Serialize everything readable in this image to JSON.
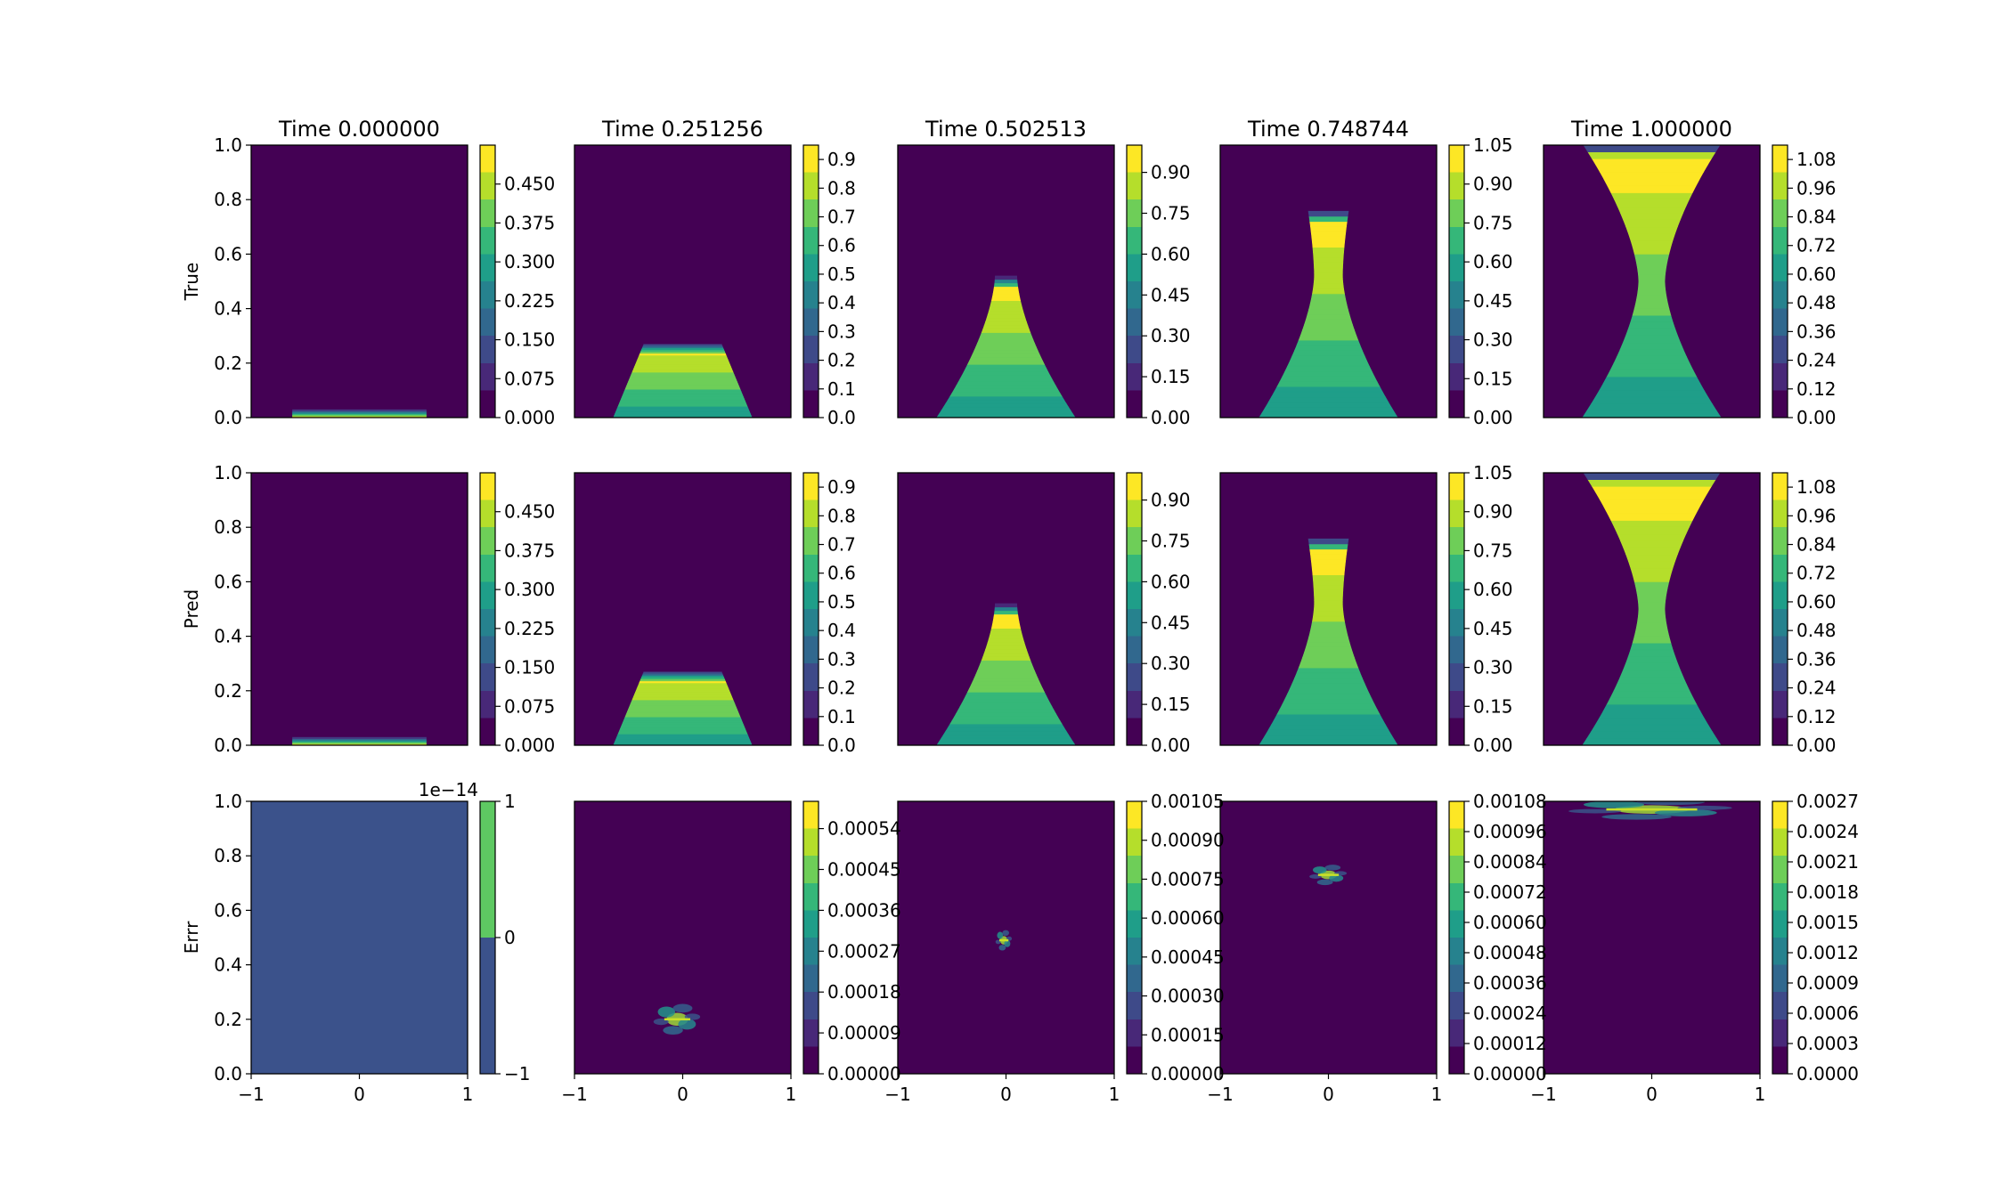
{
  "figure": {
    "row_labels": [
      "True",
      "Pred",
      "Errr"
    ],
    "colors": {
      "cmap": [
        "#440154",
        "#482878",
        "#3e4a89",
        "#31688e",
        "#26828e",
        "#1f9e89",
        "#35b779",
        "#6ece58",
        "#b5de2b",
        "#fde725"
      ],
      "background": "#440154",
      "error_flat": "#3b528b"
    }
  },
  "chart_data": [
    {
      "type": "heatmap",
      "row": "True",
      "title": "Time 0.000000",
      "xlim": [
        -1,
        1
      ],
      "ylim": [
        0,
        1
      ],
      "x_ticks": [
        "−1",
        "0",
        "1"
      ],
      "y_ticks": [
        "0.0",
        "0.2",
        "0.4",
        "0.6",
        "0.8",
        "1.0"
      ],
      "colorbar": {
        "min": 0,
        "max": 0.525,
        "ticks": [
          "0.000",
          "0.075",
          "0.150",
          "0.225",
          "0.300",
          "0.375",
          "0.450"
        ],
        "offset_label": ""
      },
      "field": {
        "shape": "band",
        "time": 0.0,
        "amplitude": 0.5
      }
    },
    {
      "type": "heatmap",
      "row": "True",
      "title": "Time 0.251256",
      "xlim": [
        -1,
        1
      ],
      "ylim": [
        0,
        1
      ],
      "x_ticks": [
        "−1",
        "0",
        "1"
      ],
      "y_ticks": [
        "0.0",
        "0.2",
        "0.4",
        "0.6",
        "0.8",
        "1.0"
      ],
      "colorbar": {
        "min": 0,
        "max": 0.95,
        "ticks": [
          "0.0",
          "0.1",
          "0.2",
          "0.3",
          "0.4",
          "0.5",
          "0.6",
          "0.7",
          "0.8",
          "0.9"
        ],
        "offset_label": ""
      },
      "field": {
        "shape": "rising",
        "time": 0.251256,
        "amplitude": 0.9
      }
    },
    {
      "type": "heatmap",
      "row": "True",
      "title": "Time 0.502513",
      "xlim": [
        -1,
        1
      ],
      "ylim": [
        0,
        1
      ],
      "x_ticks": [
        "−1",
        "0",
        "1"
      ],
      "y_ticks": [
        "0.0",
        "0.2",
        "0.4",
        "0.6",
        "0.8",
        "1.0"
      ],
      "colorbar": {
        "min": 0,
        "max": 1.0,
        "ticks": [
          "0.00",
          "0.15",
          "0.30",
          "0.45",
          "0.60",
          "0.75",
          "0.90"
        ],
        "offset_label": ""
      },
      "field": {
        "shape": "rising",
        "time": 0.502513,
        "amplitude": 0.95
      }
    },
    {
      "type": "heatmap",
      "row": "True",
      "title": "Time 0.748744",
      "xlim": [
        -1,
        1
      ],
      "ylim": [
        0,
        1
      ],
      "x_ticks": [
        "−1",
        "0",
        "1"
      ],
      "y_ticks": [
        "0.0",
        "0.2",
        "0.4",
        "0.6",
        "0.8",
        "1.0"
      ],
      "colorbar": {
        "min": 0,
        "max": 1.05,
        "ticks": [
          "0.00",
          "0.15",
          "0.30",
          "0.45",
          "0.60",
          "0.75",
          "0.90",
          "1.05"
        ],
        "offset_label": ""
      },
      "field": {
        "shape": "rising",
        "time": 0.748744,
        "amplitude": 1.0
      }
    },
    {
      "type": "heatmap",
      "row": "True",
      "title": "Time 1.000000",
      "xlim": [
        -1,
        1
      ],
      "ylim": [
        0,
        1
      ],
      "x_ticks": [
        "−1",
        "0",
        "1"
      ],
      "y_ticks": [
        "0.0",
        "0.2",
        "0.4",
        "0.6",
        "0.8",
        "1.0"
      ],
      "colorbar": {
        "min": 0,
        "max": 1.14,
        "ticks": [
          "0.00",
          "0.12",
          "0.24",
          "0.36",
          "0.48",
          "0.60",
          "0.72",
          "0.84",
          "0.96",
          "1.08"
        ],
        "offset_label": ""
      },
      "field": {
        "shape": "rising",
        "time": 1.0,
        "amplitude": 1.08
      }
    },
    {
      "type": "heatmap",
      "row": "Pred",
      "title": "",
      "xlim": [
        -1,
        1
      ],
      "ylim": [
        0,
        1
      ],
      "x_ticks": [
        "−1",
        "0",
        "1"
      ],
      "y_ticks": [
        "0.0",
        "0.2",
        "0.4",
        "0.6",
        "0.8",
        "1.0"
      ],
      "colorbar": {
        "min": 0,
        "max": 0.525,
        "ticks": [
          "0.000",
          "0.075",
          "0.150",
          "0.225",
          "0.300",
          "0.375",
          "0.450"
        ],
        "offset_label": ""
      },
      "field": {
        "shape": "band",
        "time": 0.0,
        "amplitude": 0.5
      }
    },
    {
      "type": "heatmap",
      "row": "Pred",
      "title": "",
      "xlim": [
        -1,
        1
      ],
      "ylim": [
        0,
        1
      ],
      "x_ticks": [
        "−1",
        "0",
        "1"
      ],
      "y_ticks": [
        "0.0",
        "0.2",
        "0.4",
        "0.6",
        "0.8",
        "1.0"
      ],
      "colorbar": {
        "min": 0,
        "max": 0.95,
        "ticks": [
          "0.0",
          "0.1",
          "0.2",
          "0.3",
          "0.4",
          "0.5",
          "0.6",
          "0.7",
          "0.8",
          "0.9"
        ],
        "offset_label": ""
      },
      "field": {
        "shape": "rising",
        "time": 0.251256,
        "amplitude": 0.9
      }
    },
    {
      "type": "heatmap",
      "row": "Pred",
      "title": "",
      "xlim": [
        -1,
        1
      ],
      "ylim": [
        0,
        1
      ],
      "x_ticks": [
        "−1",
        "0",
        "1"
      ],
      "y_ticks": [
        "0.0",
        "0.2",
        "0.4",
        "0.6",
        "0.8",
        "1.0"
      ],
      "colorbar": {
        "min": 0,
        "max": 1.0,
        "ticks": [
          "0.00",
          "0.15",
          "0.30",
          "0.45",
          "0.60",
          "0.75",
          "0.90"
        ],
        "offset_label": ""
      },
      "field": {
        "shape": "rising",
        "time": 0.502513,
        "amplitude": 0.95
      }
    },
    {
      "type": "heatmap",
      "row": "Pred",
      "title": "",
      "xlim": [
        -1,
        1
      ],
      "ylim": [
        0,
        1
      ],
      "x_ticks": [
        "−1",
        "0",
        "1"
      ],
      "y_ticks": [
        "0.0",
        "0.2",
        "0.4",
        "0.6",
        "0.8",
        "1.0"
      ],
      "colorbar": {
        "min": 0,
        "max": 1.05,
        "ticks": [
          "0.00",
          "0.15",
          "0.30",
          "0.45",
          "0.60",
          "0.75",
          "0.90",
          "1.05"
        ],
        "offset_label": ""
      },
      "field": {
        "shape": "rising",
        "time": 0.748744,
        "amplitude": 1.0
      }
    },
    {
      "type": "heatmap",
      "row": "Pred",
      "title": "",
      "xlim": [
        -1,
        1
      ],
      "ylim": [
        0,
        1
      ],
      "x_ticks": [
        "−1",
        "0",
        "1"
      ],
      "y_ticks": [
        "0.0",
        "0.2",
        "0.4",
        "0.6",
        "0.8",
        "1.0"
      ],
      "colorbar": {
        "min": 0,
        "max": 1.14,
        "ticks": [
          "0.00",
          "0.12",
          "0.24",
          "0.36",
          "0.48",
          "0.60",
          "0.72",
          "0.84",
          "0.96",
          "1.08"
        ],
        "offset_label": ""
      },
      "field": {
        "shape": "rising",
        "time": 1.0,
        "amplitude": 1.08
      }
    },
    {
      "type": "heatmap",
      "row": "Errr",
      "title": "",
      "xlim": [
        -1,
        1
      ],
      "ylim": [
        0,
        1
      ],
      "x_ticks": [
        "−1",
        "0",
        "1"
      ],
      "y_ticks": [
        "0.0",
        "0.2",
        "0.4",
        "0.6",
        "0.8",
        "1.0"
      ],
      "colorbar": {
        "min": -1,
        "max": 1,
        "ticks": [
          "−1",
          "0",
          "1"
        ],
        "offset_label": "1e−14",
        "discrete": [
          "#3b528b",
          "#5ec962"
        ]
      },
      "field": {
        "shape": "flat"
      }
    },
    {
      "type": "heatmap",
      "row": "Errr",
      "title": "",
      "xlim": [
        -1,
        1
      ],
      "ylim": [
        0,
        1
      ],
      "x_ticks": [
        "−1",
        "0",
        "1"
      ],
      "y_ticks": [
        "0.0",
        "0.2",
        "0.4",
        "0.6",
        "0.8",
        "1.0"
      ],
      "colorbar": {
        "min": 0,
        "max": 0.0006,
        "ticks": [
          "0.00000",
          "0.00009",
          "0.00018",
          "0.00027",
          "0.00036",
          "0.00045",
          "0.00054"
        ],
        "offset_label": ""
      },
      "field": {
        "shape": "error",
        "center": [
          -0.05,
          0.2
        ]
      }
    },
    {
      "type": "heatmap",
      "row": "Errr",
      "title": "",
      "xlim": [
        -1,
        1
      ],
      "ylim": [
        0,
        1
      ],
      "x_ticks": [
        "−1",
        "0",
        "1"
      ],
      "y_ticks": [
        "0.0",
        "0.2",
        "0.4",
        "0.6",
        "0.8",
        "1.0"
      ],
      "colorbar": {
        "min": 0,
        "max": 0.00105,
        "ticks": [
          "0.00000",
          "0.00015",
          "0.00030",
          "0.00045",
          "0.00060",
          "0.00075",
          "0.00090",
          "0.00105"
        ],
        "offset_label": ""
      },
      "field": {
        "shape": "error",
        "center": [
          -0.02,
          0.49
        ]
      }
    },
    {
      "type": "heatmap",
      "row": "Errr",
      "title": "",
      "xlim": [
        -1,
        1
      ],
      "ylim": [
        0,
        1
      ],
      "x_ticks": [
        "−1",
        "0",
        "1"
      ],
      "y_ticks": [
        "0.0",
        "0.2",
        "0.4",
        "0.6",
        "0.8",
        "1.0"
      ],
      "colorbar": {
        "min": 0,
        "max": 0.00108,
        "ticks": [
          "0.00000",
          "0.00012",
          "0.00024",
          "0.00036",
          "0.00048",
          "0.00060",
          "0.00072",
          "0.00084",
          "0.00096",
          "0.00108"
        ],
        "offset_label": ""
      },
      "field": {
        "shape": "error",
        "center": [
          0.0,
          0.73
        ]
      }
    },
    {
      "type": "heatmap",
      "row": "Errr",
      "title": "",
      "xlim": [
        -1,
        1
      ],
      "ylim": [
        0,
        1
      ],
      "x_ticks": [
        "−1",
        "0",
        "1"
      ],
      "y_ticks": [
        "0.0",
        "0.2",
        "0.4",
        "0.6",
        "0.8",
        "1.0"
      ],
      "colorbar": {
        "min": 0,
        "max": 0.0027,
        "ticks": [
          "0.0000",
          "0.0003",
          "0.0006",
          "0.0009",
          "0.0012",
          "0.0015",
          "0.0018",
          "0.0021",
          "0.0024",
          "0.0027"
        ],
        "offset_label": ""
      },
      "field": {
        "shape": "error",
        "center": [
          0.0,
          0.97
        ]
      }
    }
  ]
}
